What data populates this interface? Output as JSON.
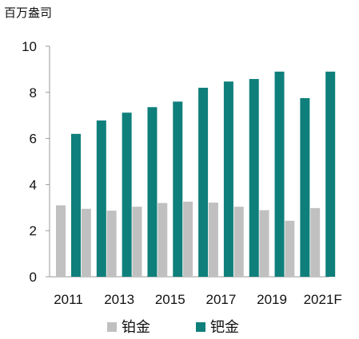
{
  "chart_data": {
    "type": "bar",
    "unit_label": "百万盎司",
    "categories": [
      "2011",
      "2012",
      "2013",
      "2014",
      "2015",
      "2016",
      "2017",
      "2018",
      "2019",
      "2020",
      "2021F"
    ],
    "x_tick_labels": [
      "2011",
      "2013",
      "2015",
      "2017",
      "2019",
      "2021F"
    ],
    "y_ticks": [
      "0",
      "2",
      "4",
      "6",
      "8",
      "10"
    ],
    "ylim": [
      0,
      10
    ],
    "grid": false,
    "legend_position": "bottom",
    "series": [
      {
        "name": "铂金",
        "color": "#c0c0c0",
        "values": [
          3.1,
          2.95,
          2.87,
          3.04,
          3.2,
          3.26,
          3.22,
          3.04,
          2.89,
          2.43,
          2.98
        ]
      },
      {
        "name": "钯金",
        "color": "#0f7f7b",
        "values": [
          6.2,
          6.78,
          7.12,
          7.36,
          7.6,
          8.2,
          8.47,
          8.58,
          8.9,
          7.75,
          8.9
        ]
      }
    ]
  }
}
